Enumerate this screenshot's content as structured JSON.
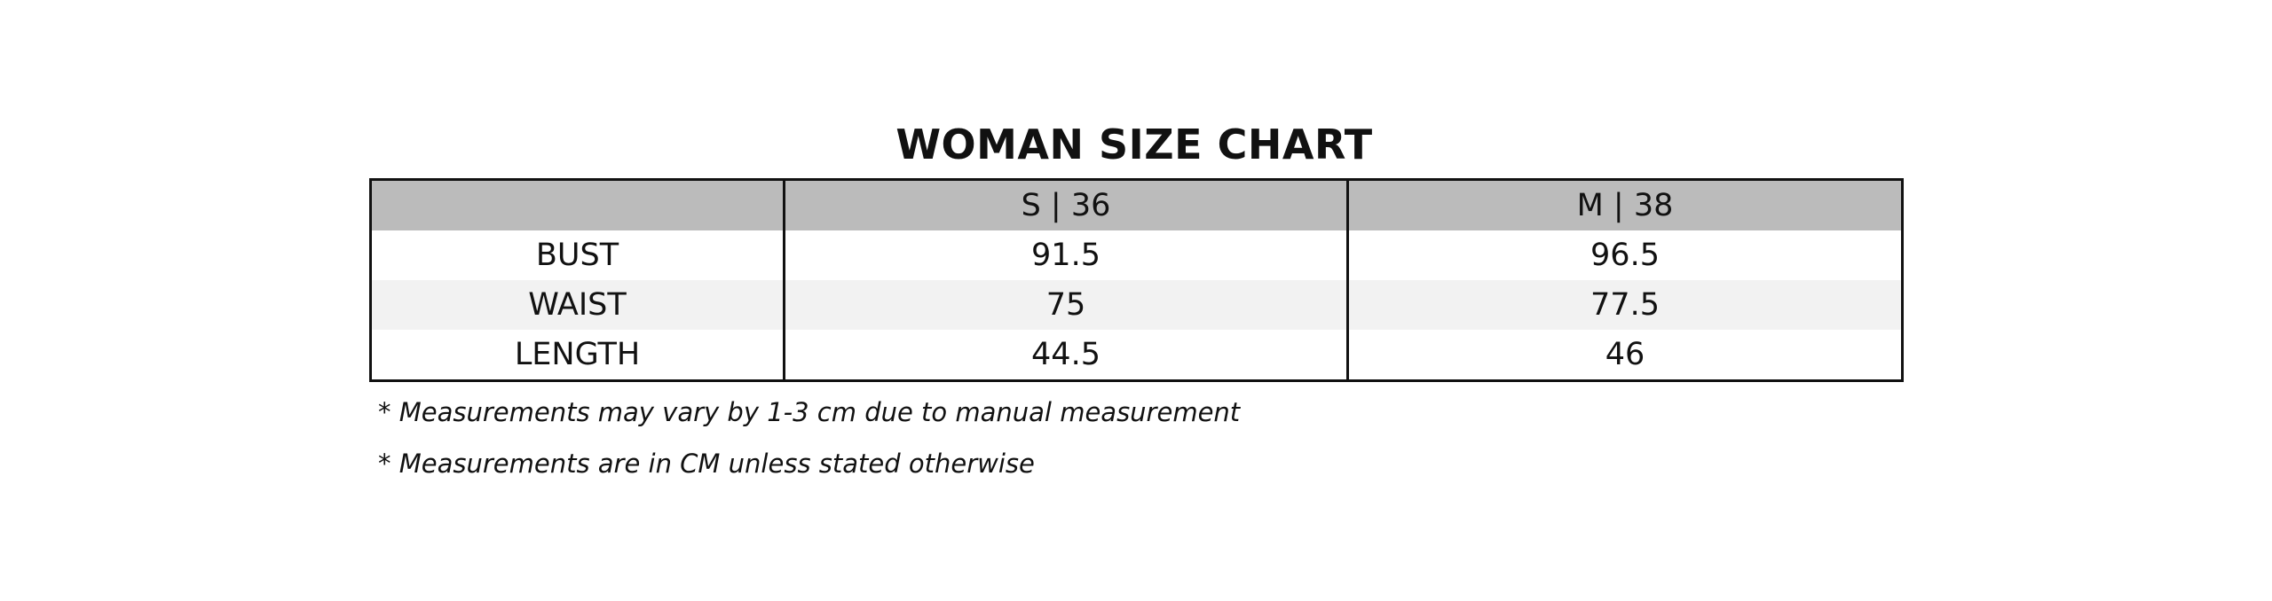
{
  "title": "WOMAN SIZE CHART",
  "table": {
    "header": [
      "S | 36",
      "M | 38"
    ],
    "rows": [
      {
        "label": "BUST",
        "values": [
          91.5,
          96.5
        ]
      },
      {
        "label": "WAIST",
        "values": [
          75,
          77.5
        ]
      },
      {
        "label": "LENGTH",
        "values": [
          44.5,
          46
        ]
      }
    ]
  },
  "notes": [
    "* Measurements may vary by 1-3 cm due to manual measurement",
    "* Measurements are in CM unless stated otherwise"
  ]
}
